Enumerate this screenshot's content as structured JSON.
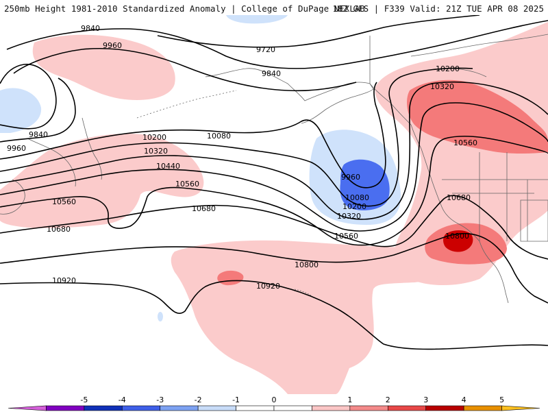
{
  "header": {
    "title": "250mb Height 1981-2010 Standardized Anomaly | College of DuPage NEXLAB",
    "run_info": "18Z GFS | F339 Valid: 21Z TUE APR 08 2025"
  },
  "contour_labels": [
    {
      "id": "c1",
      "text": "9840"
    },
    {
      "id": "c2",
      "text": "9960"
    },
    {
      "id": "c3",
      "text": "9720"
    },
    {
      "id": "c4",
      "text": "9840"
    },
    {
      "id": "c5",
      "text": "9840"
    },
    {
      "id": "c6",
      "text": "9960"
    },
    {
      "id": "c7",
      "text": "10080"
    },
    {
      "id": "c8",
      "text": "10200"
    },
    {
      "id": "c9",
      "text": "10320"
    },
    {
      "id": "c10",
      "text": "10440"
    },
    {
      "id": "c11",
      "text": "10560"
    },
    {
      "id": "c12",
      "text": "10560"
    },
    {
      "id": "c13",
      "text": "10680"
    },
    {
      "id": "c14",
      "text": "10680"
    },
    {
      "id": "c15",
      "text": "9960"
    },
    {
      "id": "c16",
      "text": "10080"
    },
    {
      "id": "c17",
      "text": "10200"
    },
    {
      "id": "c18",
      "text": "10320"
    },
    {
      "id": "c19",
      "text": "10560"
    },
    {
      "id": "c20",
      "text": "10200"
    },
    {
      "id": "c21",
      "text": "10320"
    },
    {
      "id": "c22",
      "text": "10560"
    },
    {
      "id": "c23",
      "text": "10680"
    },
    {
      "id": "c24",
      "text": "10800"
    },
    {
      "id": "c25",
      "text": "10800"
    },
    {
      "id": "c26",
      "text": "10920"
    },
    {
      "id": "c27",
      "text": "10920"
    }
  ],
  "colorbar": {
    "ticks": [
      "-5",
      "-4",
      "-3",
      "-2",
      "-1",
      "0",
      "1",
      "2",
      "3",
      "4",
      "5"
    ],
    "colors": [
      "#d45fd9",
      "#8000c0",
      "#1030b8",
      "#3e5fe8",
      "#7da2f2",
      "#c8dcf8",
      "#ffffff",
      "#ffffff",
      "#fbc6c6",
      "#f48a8a",
      "#e84848",
      "#b80000",
      "#e89000",
      "#fcc020"
    ]
  },
  "colors": {
    "positive_light": "#fbcbcb",
    "positive_mid": "#f47a7a",
    "positive_strong": "#cc0000",
    "negative_light": "#cfe2fb",
    "negative_mid": "#4a6ef0"
  }
}
